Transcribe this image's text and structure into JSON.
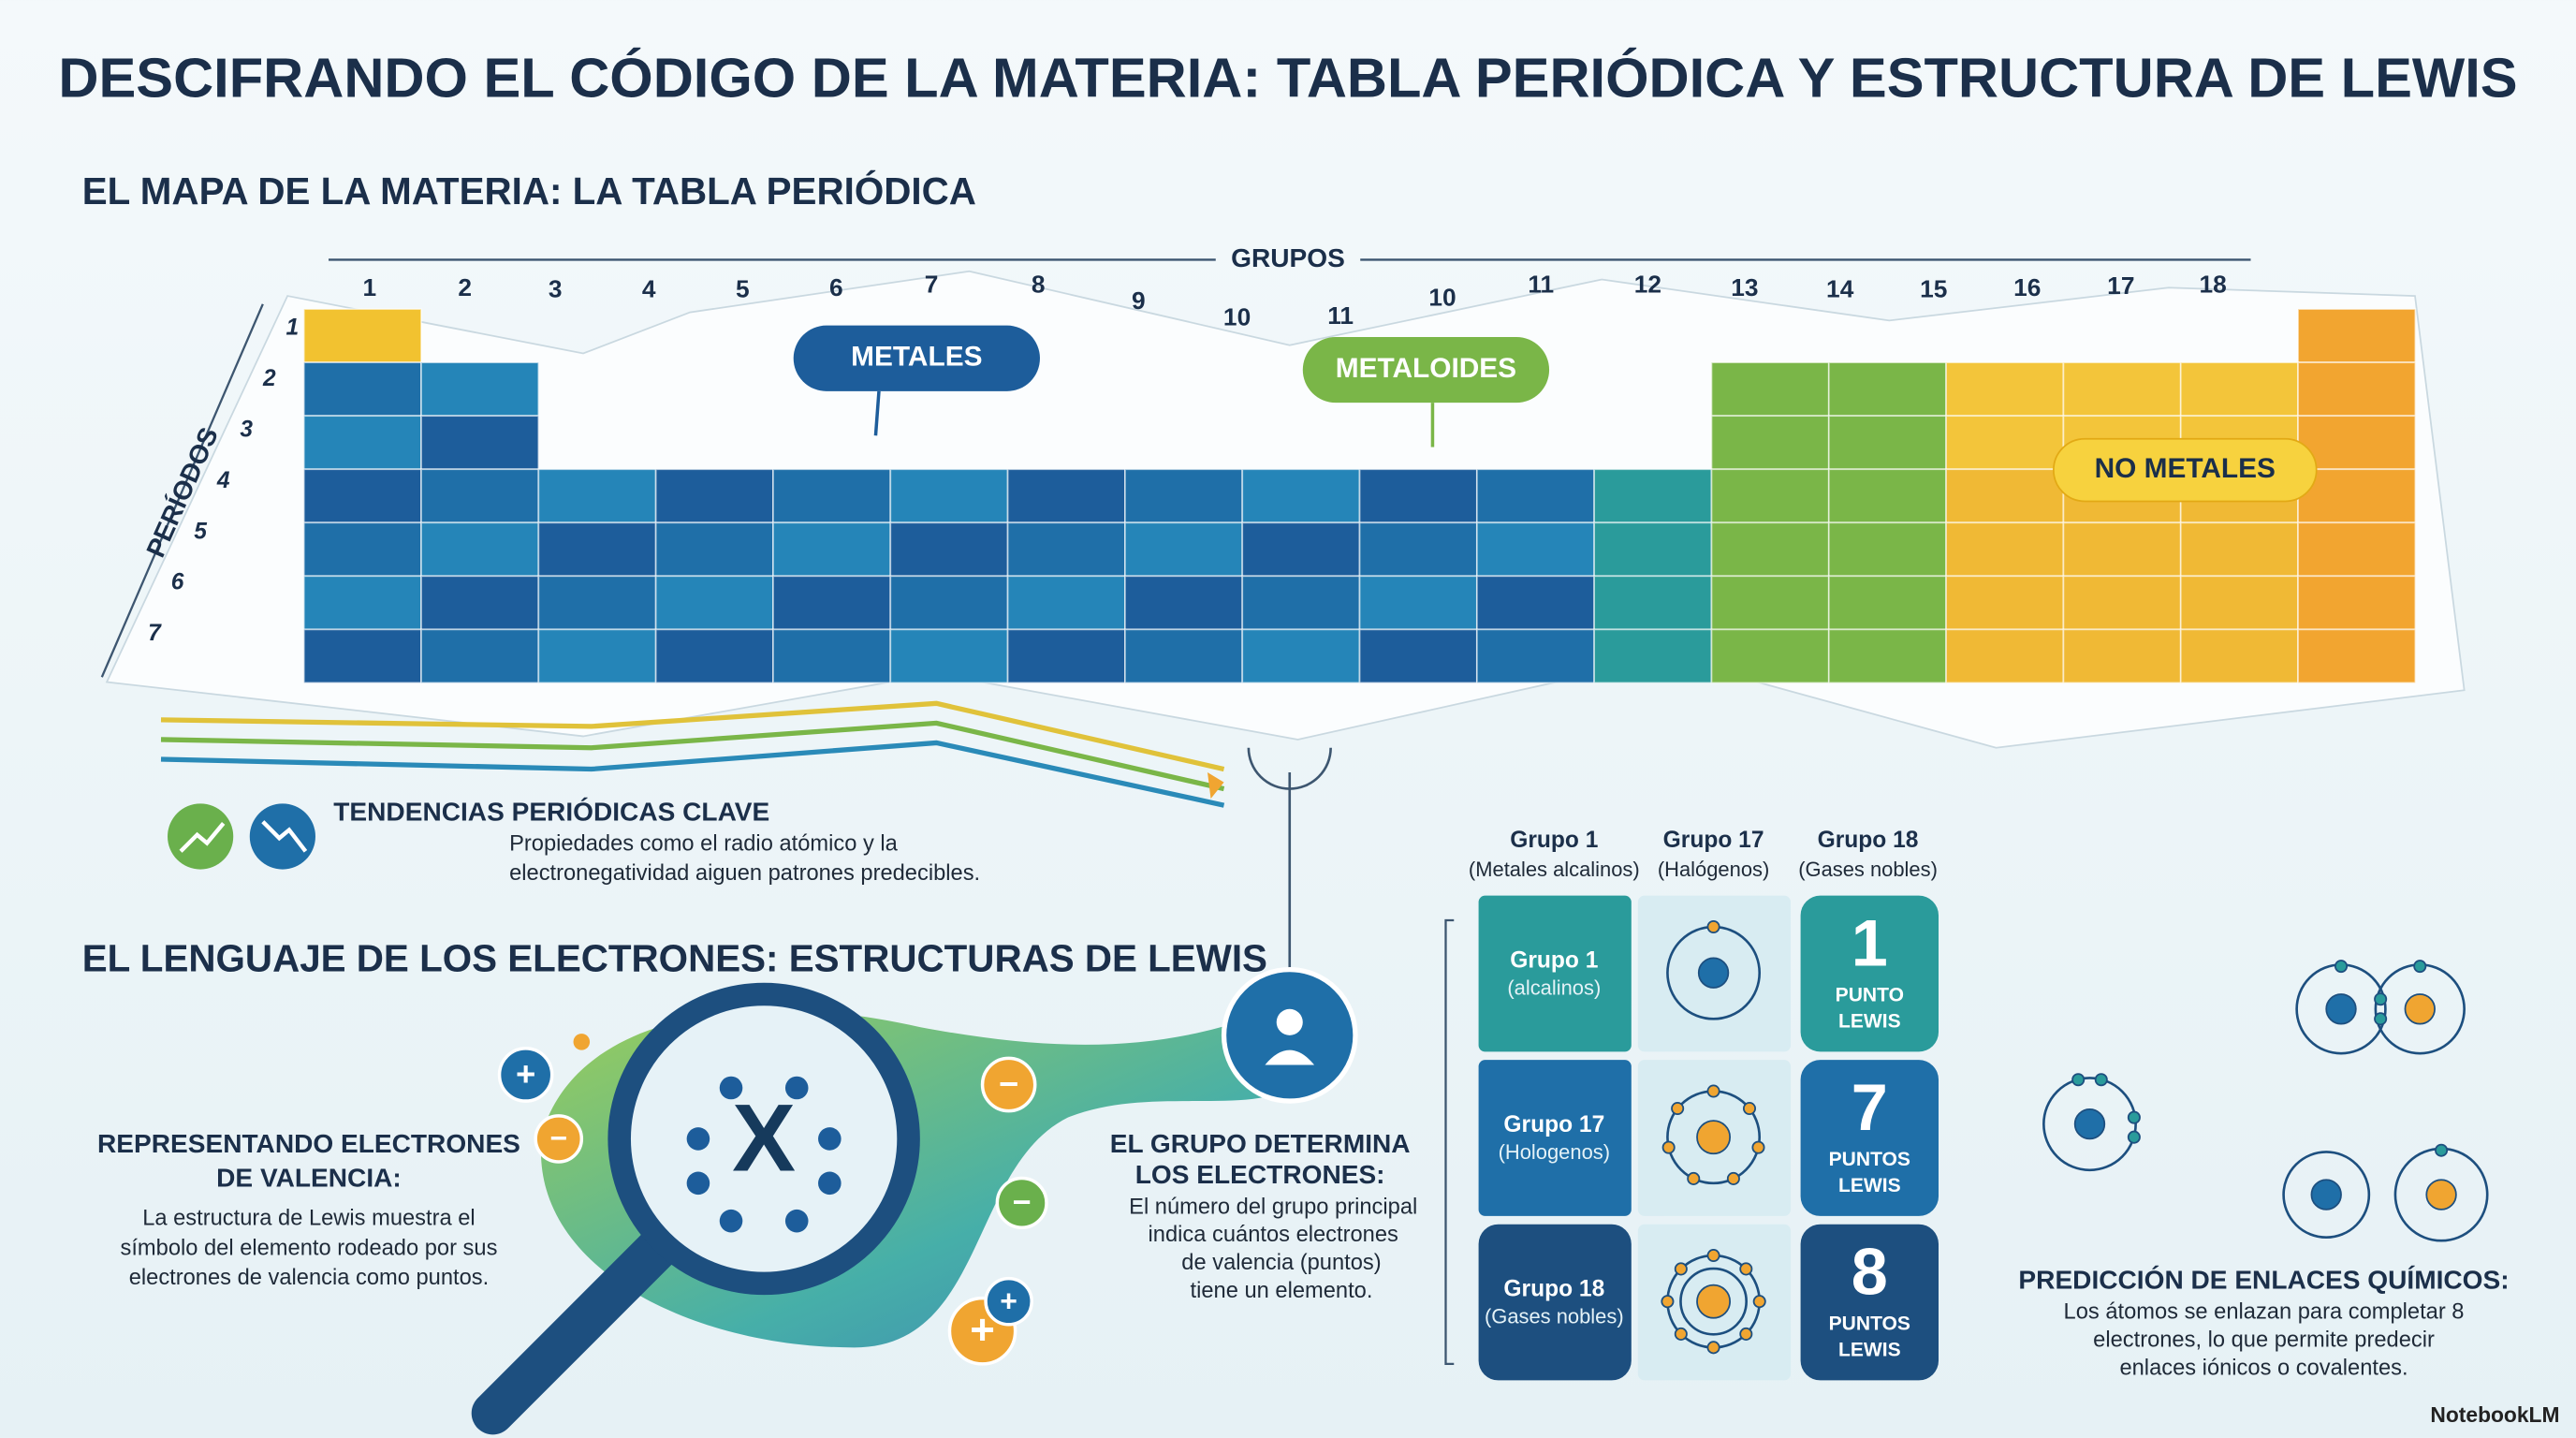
{
  "header": {
    "title": "DESCIFRANDO EL CÓDIGO DE LA MATERIA: TABLA PERIÓDICA Y ESTRUCTURA DE LEWIS"
  },
  "periodic_table": {
    "section_title": "EL MAPA DE LA MATERIA: LA TABLA PERIÓDICA",
    "groups_label": "GRUPOS",
    "groups": [
      "1",
      "2",
      "3",
      "4",
      "5",
      "6",
      "7",
      "8",
      "9",
      "10",
      "11",
      "10",
      "11",
      "12",
      "13",
      "14",
      "15",
      "16",
      "17",
      "18"
    ],
    "periods_label": "PERÍODOS",
    "periods": [
      "1",
      "2",
      "3",
      "4",
      "5",
      "6",
      "7"
    ],
    "regions": {
      "metals": "METALES",
      "metalloids": "METALOIDES",
      "nonmetals": "NO METALES"
    },
    "trends": {
      "title": "TENDENCIAS PERIÓDICAS CLAVE",
      "lines": [
        "Propiedades como el radio atómico y la",
        "electronegatividad aiguen patrones predecibles."
      ]
    }
  },
  "lewis": {
    "section_title": "EL LENGUAJE DE LOS ELECTRONES: ESTRUCTURAS DE LEWIS",
    "valence": {
      "title_lines": [
        "REPRESENTANDO ELECTRONES",
        "DE VALENCIA:"
      ],
      "lines": [
        "La estructura de Lewis muestra el",
        "símbolo del elemento rodeado por sus",
        "electrones de valencia como puntos."
      ]
    },
    "symbol": "X",
    "plus": "+",
    "minus": "−",
    "group_rule": {
      "title_lines": [
        "EL GRUPO DETERMINA",
        "LOS ELECTRONES:"
      ],
      "lines": [
        "El número del grupo principal",
        "indica cuántos electrones",
        "de valencia (puntos)",
        "tiene un elemento."
      ]
    },
    "table": {
      "headers": [
        [
          "Grupo 1",
          "(Metales alcalinos)"
        ],
        [
          "Grupo 17",
          "(Halógenos)"
        ],
        [
          "Grupo 18",
          "(Gases nobles)"
        ]
      ],
      "rows": [
        {
          "group": "Grupo 1",
          "note": "(alcalinos)",
          "dots": "1",
          "unit": "PUNTO",
          "word": "LEWIS"
        },
        {
          "group": "Grupo 17",
          "note": "(Hologenos)",
          "dots": "7",
          "unit": "PUNTOS",
          "word": "LEWIS"
        },
        {
          "group": "Grupo 18",
          "note": "(Gases nobles)",
          "dots": "8",
          "unit": "PUNTOS",
          "word": "LEWIS"
        }
      ]
    },
    "bonding": {
      "title": "PREDICCIÓN DE ENLACES QUÍMICOS:",
      "lines": [
        "Los átomos se enlazan para completar 8",
        "electrones, lo que permite predecir",
        "enlaces iónicos o covalentes."
      ]
    }
  },
  "footer": {
    "brand": "NotebookLM"
  }
}
